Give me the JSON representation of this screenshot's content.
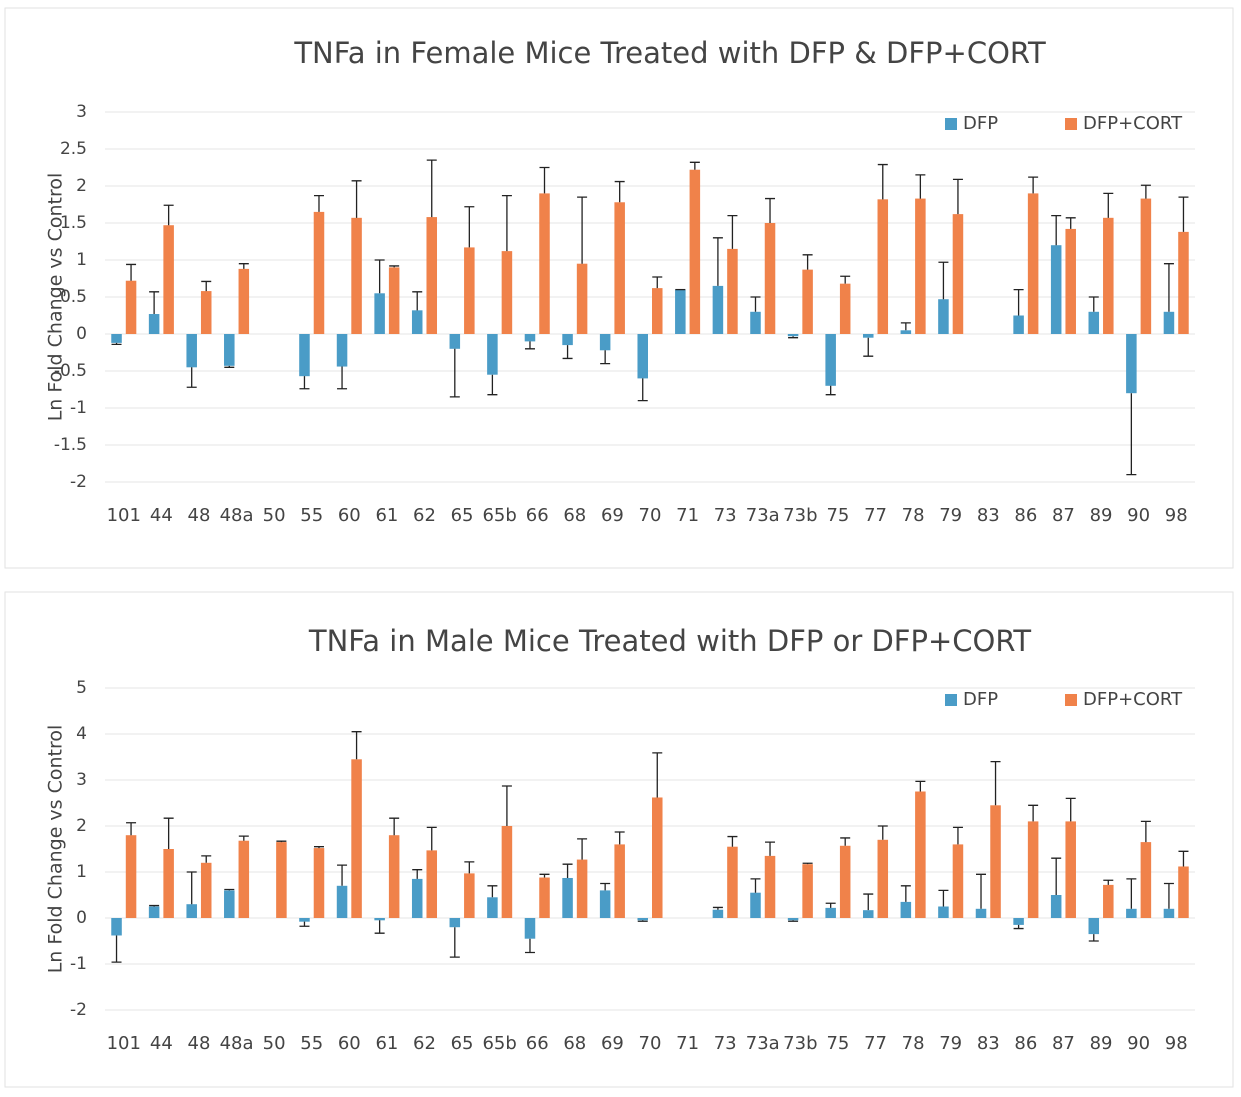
{
  "chart_data": [
    {
      "type": "bar",
      "title": "TNFa in Female Mice Treated with DFP & DFP+CORT",
      "y_label": "Ln Fold Change vs Control",
      "categories": [
        "101",
        "44",
        "48",
        "48a",
        "50",
        "55",
        "60",
        "61",
        "62",
        "65",
        "65b",
        "66",
        "68",
        "69",
        "70",
        "71",
        "73",
        "73a",
        "73b",
        "75",
        "77",
        "78",
        "79",
        "83",
        "86",
        "87",
        "89",
        "90",
        "98"
      ],
      "series": [
        {
          "name": "DFP",
          "color": "#4a9cc7",
          "values": [
            -0.12,
            0.27,
            -0.45,
            -0.43,
            null,
            -0.57,
            -0.44,
            0.55,
            0.32,
            -0.2,
            -0.55,
            -0.1,
            -0.15,
            -0.22,
            -0.6,
            0.6,
            0.65,
            0.3,
            -0.03,
            -0.7,
            -0.05,
            0.05,
            0.47,
            null,
            0.25,
            1.2,
            0.3,
            -0.8,
            0.3
          ],
          "errors": [
            0.02,
            0.3,
            0.27,
            0.02,
            null,
            0.17,
            0.3,
            0.45,
            0.25,
            0.65,
            0.27,
            0.1,
            0.18,
            0.18,
            0.3,
            0,
            0.65,
            0.2,
            0.02,
            0.12,
            0.25,
            0.1,
            0.5,
            null,
            0.35,
            0.4,
            0.2,
            1.1,
            0.65
          ]
        },
        {
          "name": "DFP+CORT",
          "color": "#f0824a",
          "values": [
            0.72,
            1.47,
            0.58,
            0.88,
            null,
            1.65,
            1.57,
            0.9,
            1.58,
            1.17,
            1.12,
            1.9,
            0.95,
            1.78,
            0.62,
            2.22,
            1.15,
            1.5,
            0.87,
            0.68,
            1.82,
            1.83,
            1.62,
            null,
            1.9,
            1.42,
            1.57,
            1.83,
            1.38
          ],
          "errors": [
            0.22,
            0.27,
            0.13,
            0.07,
            null,
            0.22,
            0.5,
            0.02,
            0.77,
            0.55,
            0.75,
            0.35,
            0.9,
            0.28,
            0.15,
            0.1,
            0.45,
            0.33,
            0.2,
            0.1,
            0.47,
            0.32,
            0.47,
            null,
            0.22,
            0.15,
            0.33,
            0.18,
            0.47
          ]
        }
      ],
      "ylim": [
        -2,
        3
      ],
      "yticks": [
        -2,
        -1.5,
        -1,
        -0.5,
        0,
        0.5,
        1,
        1.5,
        2,
        2.5,
        3
      ],
      "grid": true,
      "legend": "top-right"
    },
    {
      "type": "bar",
      "title": "TNFa in Male Mice Treated with DFP or DFP+CORT",
      "y_label": "Ln Fold Change vs Control",
      "categories": [
        "101",
        "44",
        "48",
        "48a",
        "50",
        "55",
        "60",
        "61",
        "62",
        "65",
        "65b",
        "66",
        "68",
        "69",
        "70",
        "71",
        "73",
        "73a",
        "73b",
        "75",
        "77",
        "78",
        "79",
        "83",
        "86",
        "87",
        "89",
        "90",
        "98"
      ],
      "series": [
        {
          "name": "DFP",
          "color": "#4a9cc7",
          "values": [
            -0.38,
            0.25,
            0.3,
            0.6,
            null,
            -0.08,
            0.7,
            -0.05,
            0.85,
            -0.2,
            0.45,
            -0.45,
            0.87,
            0.6,
            -0.05,
            null,
            0.18,
            0.55,
            -0.05,
            0.22,
            0.17,
            0.35,
            0.25,
            0.2,
            -0.15,
            0.5,
            -0.35,
            0.2,
            0.2
          ],
          "errors": [
            0.58,
            0.02,
            0.7,
            0.02,
            null,
            0.1,
            0.45,
            0.28,
            0.2,
            0.65,
            0.25,
            0.3,
            0.3,
            0.15,
            0.02,
            null,
            0.05,
            0.3,
            0.02,
            0.1,
            0.35,
            0.35,
            0.35,
            0.75,
            0.08,
            0.8,
            0.15,
            0.65,
            0.55
          ]
        },
        {
          "name": "DFP+CORT",
          "color": "#f0824a",
          "values": [
            1.8,
            1.5,
            1.2,
            1.68,
            1.65,
            1.52,
            3.45,
            1.8,
            1.47,
            0.97,
            2.0,
            0.88,
            1.27,
            1.6,
            2.62,
            null,
            1.55,
            1.35,
            1.17,
            1.57,
            1.7,
            2.75,
            1.6,
            2.45,
            2.1,
            2.1,
            0.72,
            1.65,
            1.12
          ],
          "errors": [
            0.27,
            0.67,
            0.15,
            0.1,
            0.02,
            0.03,
            0.6,
            0.37,
            0.5,
            0.25,
            0.87,
            0.07,
            0.45,
            0.27,
            0.97,
            null,
            0.22,
            0.3,
            0.02,
            0.17,
            0.3,
            0.22,
            0.37,
            0.95,
            0.35,
            0.5,
            0.1,
            0.45,
            0.33
          ]
        }
      ],
      "ylim": [
        -2,
        5
      ],
      "yticks": [
        -2,
        -1,
        0,
        1,
        2,
        3,
        4,
        5
      ],
      "grid": true,
      "legend": "top-right"
    }
  ]
}
